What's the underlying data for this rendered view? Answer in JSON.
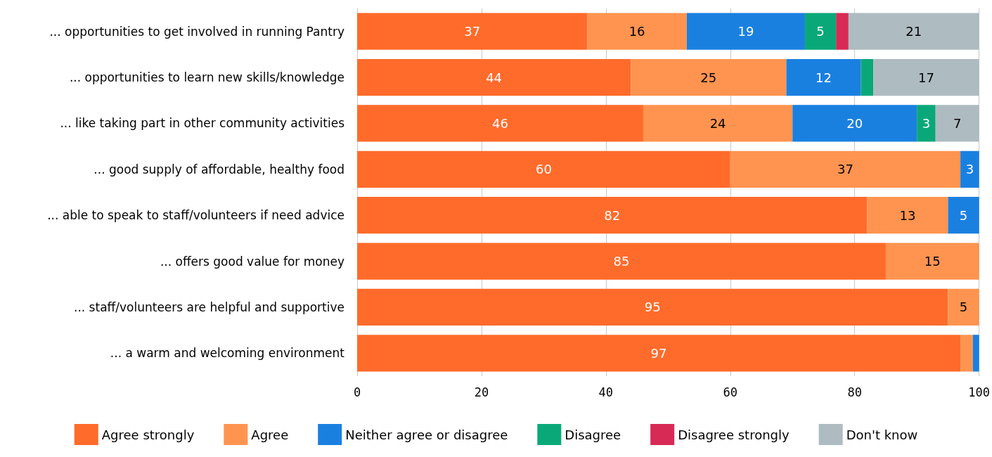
{
  "chart_data": {
    "type": "bar",
    "orientation": "horizontal",
    "stacked": true,
    "grid": "x",
    "legend": "bottom",
    "categories": [
      "... opportunities to get involved in running Pantry",
      "... opportunities to learn new skills/knowledge",
      "... like taking part in other community activities",
      "... good supply of affordable, healthy food",
      "... able to speak to staff/volunteers if need advice",
      "... offers good value for money",
      "... staff/volunteers are helpful and supportive",
      "... a warm and welcoming environment"
    ],
    "xlim": [
      0,
      100
    ],
    "xticks": [
      0,
      20,
      40,
      60,
      80,
      100
    ],
    "series": [
      {
        "name": "Agree strongly",
        "color": "#ff6b2b",
        "values": [
          37,
          44,
          46,
          60,
          82,
          85,
          95,
          97
        ],
        "value_labels": [
          "37",
          "44",
          "46",
          "60",
          "82",
          "85",
          "95",
          "97"
        ]
      },
      {
        "name": "Agree",
        "color": "#ff9450",
        "values": [
          16,
          25,
          24,
          37,
          13,
          15,
          5,
          2
        ],
        "value_labels": [
          "16",
          "25",
          "24",
          "37",
          "13",
          "15",
          "5",
          null
        ]
      },
      {
        "name": "Neither agree or disagree",
        "color": "#1a80e0",
        "values": [
          19,
          12,
          20,
          3,
          5,
          null,
          null,
          1
        ],
        "value_labels": [
          "19",
          "12",
          "20",
          "3",
          "5",
          null,
          null,
          null
        ]
      },
      {
        "name": "Disagree",
        "color": "#0aa878",
        "values": [
          5,
          2,
          3,
          null,
          null,
          null,
          null,
          null
        ],
        "value_labels": [
          "5",
          null,
          "3",
          null,
          null,
          null,
          null,
          null
        ]
      },
      {
        "name": "Disagree strongly",
        "color": "#d72a55",
        "values": [
          2,
          null,
          null,
          null,
          null,
          null,
          null,
          null
        ],
        "value_labels": [
          null,
          null,
          null,
          null,
          null,
          null,
          null,
          null
        ]
      },
      {
        "name": "Don't know",
        "color": "#aebbc1",
        "values": [
          21,
          17,
          7,
          null,
          null,
          null,
          null,
          null
        ],
        "value_labels": [
          "21",
          "17",
          "7",
          null,
          null,
          null,
          null,
          null
        ]
      }
    ]
  }
}
